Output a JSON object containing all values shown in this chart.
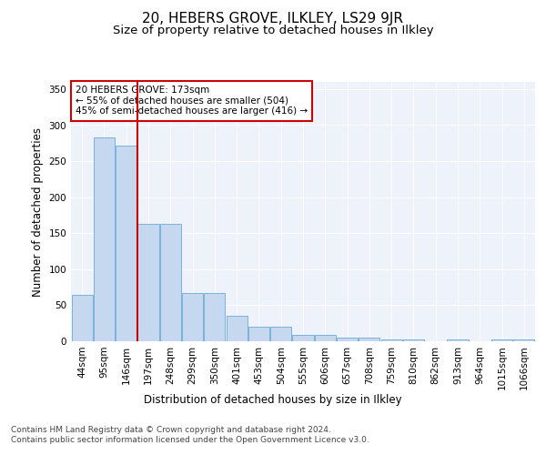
{
  "title": "20, HEBERS GROVE, ILKLEY, LS29 9JR",
  "subtitle": "Size of property relative to detached houses in Ilkley",
  "xlabel": "Distribution of detached houses by size in Ilkley",
  "ylabel": "Number of detached properties",
  "categories": [
    "44sqm",
    "95sqm",
    "146sqm",
    "197sqm",
    "248sqm",
    "299sqm",
    "350sqm",
    "401sqm",
    "453sqm",
    "504sqm",
    "555sqm",
    "606sqm",
    "657sqm",
    "708sqm",
    "759sqm",
    "810sqm",
    "862sqm",
    "913sqm",
    "964sqm",
    "1015sqm",
    "1066sqm"
  ],
  "values": [
    65,
    283,
    272,
    163,
    163,
    67,
    67,
    36,
    20,
    20,
    9,
    9,
    5,
    5,
    3,
    2,
    0,
    2,
    0,
    2,
    2
  ],
  "bar_color": "#c5d8f0",
  "bar_edge_color": "#6aaad4",
  "vline_x": 2.5,
  "vline_color": "#cc0000",
  "annotation_text": "20 HEBERS GROVE: 173sqm\n← 55% of detached houses are smaller (504)\n45% of semi-detached houses are larger (416) →",
  "annotation_box_color": "#ffffff",
  "annotation_box_edge": "#cc0000",
  "ylim": [
    0,
    360
  ],
  "yticks": [
    0,
    50,
    100,
    150,
    200,
    250,
    300,
    350
  ],
  "footer": "Contains HM Land Registry data © Crown copyright and database right 2024.\nContains public sector information licensed under the Open Government Licence v3.0.",
  "background_color": "#ffffff",
  "plot_bg_color": "#eef2fb",
  "title_fontsize": 11,
  "subtitle_fontsize": 9.5,
  "axis_label_fontsize": 8.5,
  "tick_fontsize": 7.5,
  "footer_fontsize": 6.5,
  "grid_color": "#ffffff"
}
